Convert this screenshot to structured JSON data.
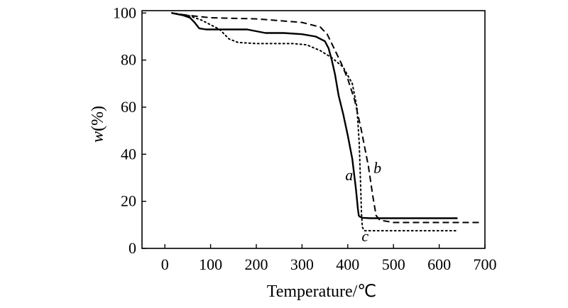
{
  "chart_data": {
    "type": "line",
    "xlabel": "Temperature/℃",
    "ylabel_italic": "w",
    "ylabel_rest": "(%)",
    "xlim": [
      -50,
      700
    ],
    "ylim": [
      0,
      101
    ],
    "xticks": [
      0,
      100,
      200,
      300,
      400,
      500,
      600,
      700
    ],
    "yticks": [
      0,
      20,
      40,
      60,
      80,
      100
    ],
    "grid": false,
    "series": [
      {
        "name": "a",
        "style": "solid",
        "points": [
          [
            15,
            100
          ],
          [
            40,
            99
          ],
          [
            55,
            98
          ],
          [
            65,
            96
          ],
          [
            75,
            93.5
          ],
          [
            90,
            93
          ],
          [
            120,
            93
          ],
          [
            180,
            93
          ],
          [
            220,
            91.5
          ],
          [
            260,
            91.5
          ],
          [
            300,
            91
          ],
          [
            330,
            90
          ],
          [
            350,
            88
          ],
          [
            358,
            85
          ],
          [
            365,
            80
          ],
          [
            372,
            74
          ],
          [
            380,
            65
          ],
          [
            390,
            57
          ],
          [
            400,
            48
          ],
          [
            410,
            38
          ],
          [
            418,
            25
          ],
          [
            422,
            17
          ],
          [
            424,
            14
          ],
          [
            426,
            13.5
          ],
          [
            432,
            13
          ],
          [
            450,
            12.8
          ],
          [
            500,
            12.8
          ],
          [
            640,
            12.8
          ]
        ]
      },
      {
        "name": "b",
        "style": "dashed",
        "points": [
          [
            15,
            100
          ],
          [
            50,
            99
          ],
          [
            100,
            98
          ],
          [
            200,
            97.5
          ],
          [
            300,
            96
          ],
          [
            340,
            94
          ],
          [
            355,
            91
          ],
          [
            370,
            85
          ],
          [
            385,
            79
          ],
          [
            400,
            72
          ],
          [
            415,
            63
          ],
          [
            430,
            50
          ],
          [
            445,
            35
          ],
          [
            455,
            22
          ],
          [
            462,
            14
          ],
          [
            470,
            12
          ],
          [
            500,
            11
          ],
          [
            600,
            11
          ],
          [
            690,
            11
          ]
        ]
      },
      {
        "name": "c",
        "style": "dotted",
        "points": [
          [
            15,
            100
          ],
          [
            50,
            99
          ],
          [
            80,
            97
          ],
          [
            100,
            95
          ],
          [
            120,
            93
          ],
          [
            140,
            89
          ],
          [
            160,
            87.5
          ],
          [
            200,
            87
          ],
          [
            280,
            87
          ],
          [
            310,
            86.5
          ],
          [
            340,
            84
          ],
          [
            365,
            81
          ],
          [
            390,
            77
          ],
          [
            410,
            70
          ],
          [
            420,
            60
          ],
          [
            425,
            45
          ],
          [
            428,
            28
          ],
          [
            430,
            15
          ],
          [
            432,
            9
          ],
          [
            436,
            7.5
          ],
          [
            460,
            7.5
          ],
          [
            640,
            7.5
          ]
        ]
      }
    ],
    "annotations": [
      {
        "text": "a",
        "x": 403,
        "y": 29
      },
      {
        "text": "b",
        "x": 465,
        "y": 32
      },
      {
        "text": "c",
        "x": 438,
        "y": 3
      }
    ]
  }
}
